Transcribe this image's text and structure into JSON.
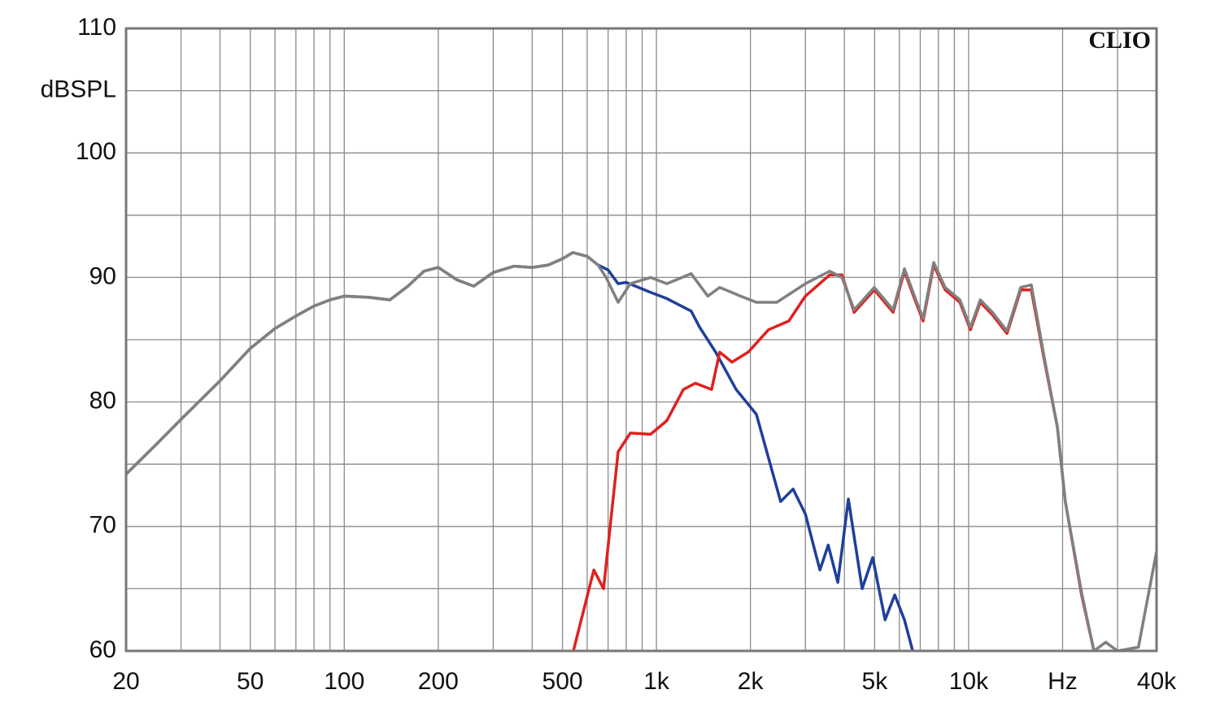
{
  "chart_data": {
    "type": "line",
    "logx": true,
    "grid": true,
    "brand": "CLIO",
    "y_label": "dBSPL",
    "xlim": [
      20,
      40000
    ],
    "ylim": [
      60,
      110
    ],
    "xticks": [
      20,
      50,
      100,
      200,
      500,
      {
        "value": 1000,
        "label": "1k"
      },
      {
        "value": 2000,
        "label": "2k"
      },
      {
        "value": 5000,
        "label": "5k"
      },
      {
        "value": 10000,
        "label": "10k"
      },
      {
        "value": 20000,
        "label": "Hz"
      },
      {
        "value": 40000,
        "label": "40k"
      }
    ],
    "minor_xticks": [
      30,
      40,
      60,
      70,
      80,
      90,
      300,
      400,
      600,
      700,
      800,
      900,
      3000,
      4000,
      6000,
      7000,
      8000,
      9000,
      30000
    ],
    "yticks": [
      60,
      70,
      80,
      90,
      100,
      110
    ],
    "minor_yticks": [
      65,
      75,
      85,
      95,
      105
    ],
    "series": [
      {
        "color": "#1f3f9a",
        "x": [
          20,
          25,
          30,
          40,
          50,
          60,
          70,
          80,
          90,
          100,
          120,
          140,
          160,
          180,
          200,
          230,
          260,
          300,
          350,
          400,
          450,
          500,
          540,
          600,
          650,
          700,
          754,
          800,
          958,
          1080,
          1292,
          1375,
          1548,
          1800,
          2090,
          2500,
          2740,
          3000,
          3340,
          3550,
          3810,
          4120,
          4560,
          4930,
          5400,
          5800,
          6230,
          6620
        ],
        "values": [
          74.2,
          76.6,
          78.6,
          81.7,
          84.3,
          85.9,
          86.9,
          87.7,
          88.2,
          88.5,
          88.4,
          88.2,
          89.3,
          90.5,
          90.8,
          89.8,
          89.3,
          90.4,
          90.9,
          90.8,
          91,
          91.5,
          92,
          91.7,
          91,
          90.6,
          89.5,
          89.6,
          88.8,
          88.3,
          87.3,
          86,
          84,
          81,
          79,
          72,
          73,
          71,
          66.5,
          68.5,
          65.5,
          72.2,
          65,
          67.5,
          62.5,
          64.5,
          62.5,
          60
        ]
      },
      {
        "color": "#e02020",
        "x": [
          542,
          630,
          677,
          754,
          825,
          958,
          1080,
          1220,
          1333,
          1502,
          1595,
          1746,
          1969,
          2287,
          2655,
          3000,
          3590,
          3930,
          4300,
          4990,
          5730,
          6230,
          6730,
          7150,
          7730,
          8410,
          9380,
          10140,
          10900,
          11920,
          13270,
          14690,
          15880,
          17580,
          19240,
          20400,
          23000,
          25200
        ],
        "values": [
          60,
          66.5,
          65,
          76,
          77.5,
          77.4,
          78.5,
          81,
          81.5,
          81,
          84,
          83.2,
          84,
          85.8,
          86.5,
          88.5,
          90.2,
          90.2,
          87.2,
          89,
          87.2,
          90.5,
          88.2,
          86.5,
          91,
          89,
          88,
          85.8,
          88,
          87,
          85.5,
          89,
          89,
          83,
          78,
          72,
          64.5,
          60
        ]
      },
      {
        "color": "#808080",
        "x": [
          20,
          25,
          30,
          40,
          50,
          60,
          70,
          80,
          90,
          100,
          120,
          140,
          160,
          180,
          200,
          230,
          260,
          300,
          350,
          400,
          450,
          500,
          540,
          600,
          650,
          690,
          754,
          825,
          958,
          1080,
          1292,
          1461,
          1595,
          1860,
          2090,
          2430,
          3000,
          3590,
          3930,
          4300,
          4990,
          5730,
          6230,
          6730,
          7150,
          7730,
          8410,
          9380,
          10140,
          10900,
          11920,
          13270,
          14690,
          15880,
          17580,
          19240,
          20400,
          23000,
          25200,
          27500,
          30000,
          35000,
          40000
        ],
        "values": [
          74.2,
          76.6,
          78.6,
          81.7,
          84.3,
          85.9,
          86.9,
          87.7,
          88.2,
          88.5,
          88.4,
          88.2,
          89.3,
          90.5,
          90.8,
          89.8,
          89.3,
          90.4,
          90.9,
          90.8,
          91,
          91.5,
          92,
          91.7,
          91,
          90,
          88,
          89.5,
          90,
          89.5,
          90.3,
          88.5,
          89.2,
          88.5,
          88,
          88,
          89.5,
          90.5,
          90,
          87.4,
          89.2,
          87.4,
          90.7,
          88.4,
          86.7,
          91.2,
          89.2,
          88.2,
          86,
          88.2,
          87.2,
          85.7,
          89.2,
          89.4,
          83.2,
          78,
          72,
          64.7,
          60,
          60.7,
          60,
          60.3,
          68
        ]
      }
    ]
  }
}
